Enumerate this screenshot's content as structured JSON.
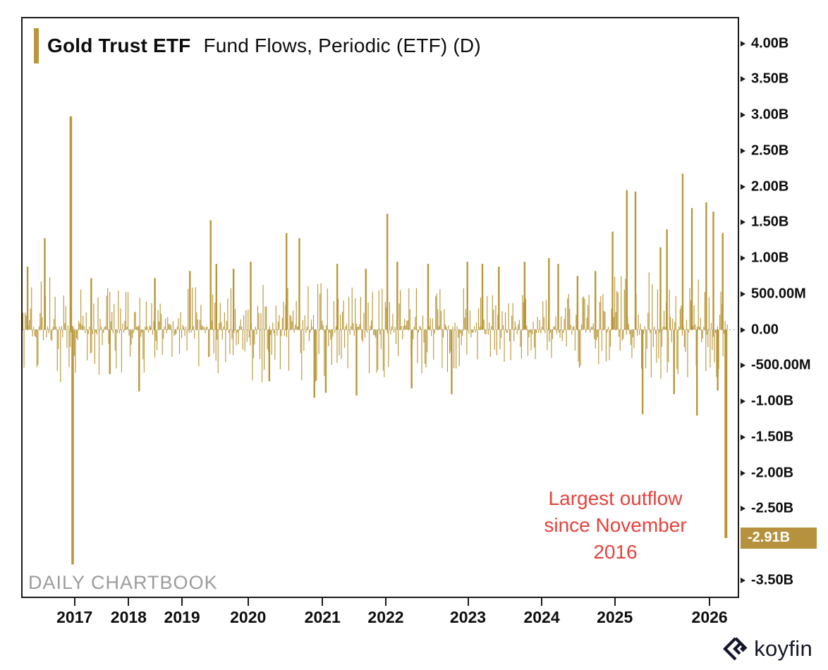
{
  "title": {
    "ticker": "Gold Trust ETF",
    "rest": "Fund Flows, Periodic (ETF) (D)"
  },
  "watermark": "DAILY CHARTBOOK",
  "brand": {
    "name": "koyfin"
  },
  "annotation": {
    "lines": [
      "Largest outflow",
      "since November",
      "2016"
    ],
    "color": "#E5423C"
  },
  "last_value_badge": {
    "label": "-2.91B",
    "value_b": -2.91
  },
  "colors": {
    "gold": "#B99738",
    "badge_gold": "#B6923E",
    "axis": "#1A1A1A",
    "text": "#0D0D0D",
    "watermark_gray": "#9C9C9C",
    "zero_line": "#AAAAAA",
    "badge_text": "#FFFFFF",
    "brand_dark": "#15152A",
    "background": "#FFFFFF"
  },
  "chart_data": {
    "type": "bar",
    "title": "Gold Trust ETF Fund Flows, Periodic (ETF) (D)",
    "frequency": "Daily",
    "legend_position": "none",
    "grid": "zero-line-only",
    "ylim_b": [
      -3.73,
      4.35
    ],
    "latest_value_b": -2.91,
    "y_ticks": [
      {
        "label": "4.00B",
        "value_b": 4.0
      },
      {
        "label": "3.50B",
        "value_b": 3.5
      },
      {
        "label": "3.00B",
        "value_b": 3.0
      },
      {
        "label": "2.50B",
        "value_b": 2.5
      },
      {
        "label": "2.00B",
        "value_b": 2.0
      },
      {
        "label": "1.50B",
        "value_b": 1.5
      },
      {
        "label": "1.00B",
        "value_b": 1.0
      },
      {
        "label": "500.00M",
        "value_b": 0.5
      },
      {
        "label": "0.00",
        "value_b": 0.0
      },
      {
        "label": "-500.00M",
        "value_b": -0.5
      },
      {
        "label": "-1.00B",
        "value_b": -1.0
      },
      {
        "label": "-1.50B",
        "value_b": -1.5
      },
      {
        "label": "-2.00B",
        "value_b": -2.0
      },
      {
        "label": "-2.50B",
        "value_b": -2.5
      },
      {
        "label": "-3.00B",
        "value_b": -3.0
      },
      {
        "label": "-3.50B",
        "value_b": -3.5
      }
    ],
    "x_years": [
      {
        "label": "2017",
        "f": 0.0727
      },
      {
        "label": "2018",
        "f": 0.1483
      },
      {
        "label": "2019",
        "f": 0.223
      },
      {
        "label": "2020",
        "f": 0.3153
      },
      {
        "label": "2021",
        "f": 0.4194
      },
      {
        "label": "2022",
        "f": 0.5079
      },
      {
        "label": "2023",
        "f": 0.6228
      },
      {
        "label": "2024",
        "f": 0.7259
      },
      {
        "label": "2025",
        "f": 0.8281
      },
      {
        "label": "2026",
        "f": 0.9607
      }
    ],
    "key_points": [
      {
        "f": 0.007,
        "value_b": 0.88
      },
      {
        "f": 0.031,
        "value_b": 1.28
      },
      {
        "f": 0.0675,
        "value_b": 2.98,
        "note": "late-2016 inflow spike",
        "w": 3.5
      },
      {
        "f": 0.07,
        "value_b": -3.28,
        "note": "November 2016 record outflow",
        "w": 3.5
      },
      {
        "f": 0.096,
        "value_b": 0.72
      },
      {
        "f": 0.122,
        "value_b": -0.62
      },
      {
        "f": 0.163,
        "value_b": -0.86
      },
      {
        "f": 0.185,
        "value_b": 0.72
      },
      {
        "f": 0.234,
        "value_b": 0.82
      },
      {
        "f": 0.263,
        "value_b": 1.53
      },
      {
        "f": 0.271,
        "value_b": 0.92
      },
      {
        "f": 0.295,
        "value_b": 0.85
      },
      {
        "f": 0.319,
        "value_b": 0.95
      },
      {
        "f": 0.345,
        "value_b": -0.72
      },
      {
        "f": 0.369,
        "value_b": 1.35
      },
      {
        "f": 0.387,
        "value_b": 1.28
      },
      {
        "f": 0.408,
        "value_b": -0.95
      },
      {
        "f": 0.424,
        "value_b": -0.88
      },
      {
        "f": 0.44,
        "value_b": 0.92
      },
      {
        "f": 0.467,
        "value_b": -0.92
      },
      {
        "f": 0.48,
        "value_b": 0.85
      },
      {
        "f": 0.51,
        "value_b": 1.62
      },
      {
        "f": 0.524,
        "value_b": 0.95
      },
      {
        "f": 0.544,
        "value_b": -0.82
      },
      {
        "f": 0.567,
        "value_b": 0.92
      },
      {
        "f": 0.6,
        "value_b": -0.9
      },
      {
        "f": 0.622,
        "value_b": 0.95
      },
      {
        "f": 0.643,
        "value_b": 0.92
      },
      {
        "f": 0.666,
        "value_b": 0.88
      },
      {
        "f": 0.702,
        "value_b": 0.95
      },
      {
        "f": 0.736,
        "value_b": 1.0
      },
      {
        "f": 0.749,
        "value_b": 0.92
      },
      {
        "f": 0.776,
        "value_b": 0.75
      },
      {
        "f": 0.801,
        "value_b": 0.82
      },
      {
        "f": 0.825,
        "value_b": 1.37
      },
      {
        "f": 0.845,
        "value_b": 1.95
      },
      {
        "f": 0.857,
        "value_b": 1.93
      },
      {
        "f": 0.867,
        "value_b": -1.18
      },
      {
        "f": 0.892,
        "value_b": 1.15
      },
      {
        "f": 0.901,
        "value_b": 1.4
      },
      {
        "f": 0.911,
        "value_b": -0.9
      },
      {
        "f": 0.923,
        "value_b": 2.18
      },
      {
        "f": 0.936,
        "value_b": 1.7
      },
      {
        "f": 0.943,
        "value_b": -1.2
      },
      {
        "f": 0.956,
        "value_b": 1.78
      },
      {
        "f": 0.966,
        "value_b": 1.65
      },
      {
        "f": 0.972,
        "value_b": -0.85
      },
      {
        "f": 0.979,
        "value_b": 1.35
      },
      {
        "f": 0.9835,
        "value_b": -2.91,
        "note": "Largest outflow since November 2016",
        "w": 4.0
      }
    ],
    "noise_envelope": [
      [
        0.0,
        0.073,
        0.8,
        0.7
      ],
      [
        0.073,
        0.148,
        0.55,
        0.6
      ],
      [
        0.148,
        0.223,
        0.5,
        0.62
      ],
      [
        0.223,
        0.316,
        0.62,
        0.6
      ],
      [
        0.316,
        0.419,
        0.68,
        0.7
      ],
      [
        0.419,
        0.508,
        0.55,
        0.68
      ],
      [
        0.508,
        0.623,
        0.58,
        0.6
      ],
      [
        0.623,
        0.728,
        0.45,
        0.45
      ],
      [
        0.728,
        0.826,
        0.5,
        0.5
      ],
      [
        0.826,
        0.961,
        0.8,
        0.75
      ],
      [
        0.961,
        0.985,
        0.65,
        0.65
      ]
    ],
    "render_seed": 11
  }
}
